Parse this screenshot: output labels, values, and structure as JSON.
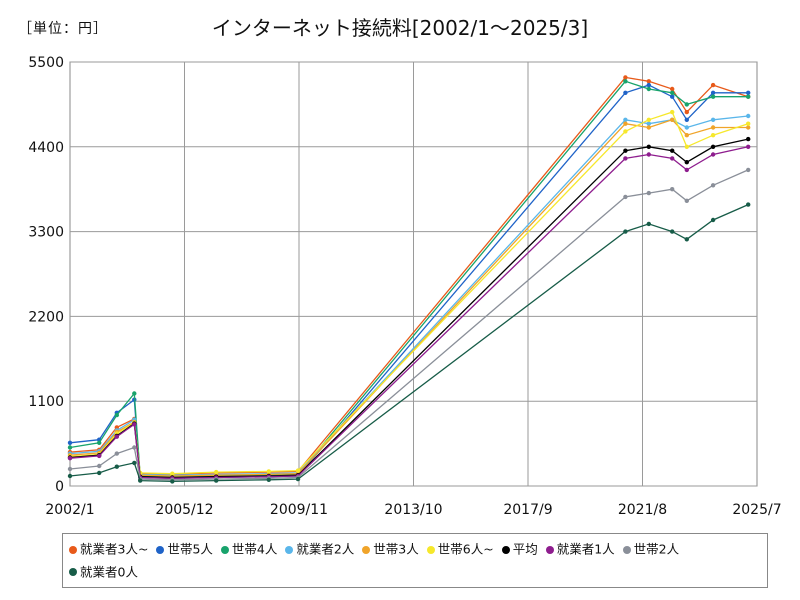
{
  "chart_data": {
    "type": "line",
    "title": "インターネット接続料[2002/1～2025/3]",
    "unit_label": "［単位：円］",
    "xlabel": "",
    "ylabel": "",
    "x_ticks": [
      "2002/1",
      "2005/12",
      "2009/11",
      "2013/10",
      "2017/9",
      "2021/8",
      "2025/7"
    ],
    "y_ticks": [
      0,
      1100,
      2200,
      3300,
      4400,
      5500
    ],
    "ylim": [
      0,
      5500
    ],
    "xlim": [
      "2002/1",
      "2025/7"
    ],
    "grid": true,
    "legend_position": "bottom",
    "series": [
      {
        "name": "就業者3人~",
        "color": "#e85a1a",
        "values": [
          [
            2002.0,
            440
          ],
          [
            2003.0,
            470
          ],
          [
            2003.6,
            760
          ],
          [
            2004.2,
            870
          ],
          [
            2004.4,
            160
          ],
          [
            2005.5,
            150
          ],
          [
            2007.0,
            170
          ],
          [
            2008.8,
            180
          ],
          [
            2009.8,
            190
          ],
          [
            2021.0,
            5300
          ],
          [
            2021.8,
            5250
          ],
          [
            2022.6,
            5150
          ],
          [
            2023.1,
            4850
          ],
          [
            2024.0,
            5200
          ],
          [
            2025.2,
            5050
          ]
        ]
      },
      {
        "name": "世帯5人",
        "color": "#1f63c8",
        "values": [
          [
            2002.0,
            560
          ],
          [
            2003.0,
            600
          ],
          [
            2003.6,
            950
          ],
          [
            2004.2,
            1120
          ],
          [
            2004.4,
            110
          ],
          [
            2005.5,
            100
          ],
          [
            2007.0,
            110
          ],
          [
            2008.8,
            120
          ],
          [
            2009.8,
            130
          ],
          [
            2021.0,
            5100
          ],
          [
            2021.8,
            5200
          ],
          [
            2022.6,
            5050
          ],
          [
            2023.1,
            4750
          ],
          [
            2024.0,
            5100
          ],
          [
            2025.2,
            5100
          ]
        ]
      },
      {
        "name": "世帯4人",
        "color": "#18a36c",
        "values": [
          [
            2002.0,
            500
          ],
          [
            2003.0,
            560
          ],
          [
            2003.6,
            920
          ],
          [
            2004.2,
            1200
          ],
          [
            2004.4,
            130
          ],
          [
            2005.5,
            120
          ],
          [
            2007.0,
            130
          ],
          [
            2008.8,
            140
          ],
          [
            2009.8,
            150
          ],
          [
            2021.0,
            5250
          ],
          [
            2021.8,
            5150
          ],
          [
            2022.6,
            5100
          ],
          [
            2023.1,
            4950
          ],
          [
            2024.0,
            5050
          ],
          [
            2025.2,
            5050
          ]
        ]
      },
      {
        "name": "就業者2人",
        "color": "#5ab6ea",
        "values": [
          [
            2002.0,
            420
          ],
          [
            2003.0,
            450
          ],
          [
            2003.6,
            720
          ],
          [
            2004.2,
            860
          ],
          [
            2004.4,
            150
          ],
          [
            2005.5,
            140
          ],
          [
            2007.0,
            150
          ],
          [
            2008.8,
            160
          ],
          [
            2009.8,
            170
          ],
          [
            2021.0,
            4750
          ],
          [
            2021.8,
            4700
          ],
          [
            2022.6,
            4750
          ],
          [
            2023.1,
            4650
          ],
          [
            2024.0,
            4750
          ],
          [
            2025.2,
            4800
          ]
        ]
      },
      {
        "name": "世帯3人",
        "color": "#f0a42a",
        "values": [
          [
            2002.0,
            400
          ],
          [
            2003.0,
            430
          ],
          [
            2003.6,
            700
          ],
          [
            2004.2,
            830
          ],
          [
            2004.4,
            140
          ],
          [
            2005.5,
            130
          ],
          [
            2007.0,
            140
          ],
          [
            2008.8,
            150
          ],
          [
            2009.8,
            160
          ],
          [
            2021.0,
            4700
          ],
          [
            2021.8,
            4650
          ],
          [
            2022.6,
            4750
          ],
          [
            2023.1,
            4550
          ],
          [
            2024.0,
            4650
          ],
          [
            2025.2,
            4650
          ]
        ]
      },
      {
        "name": "世帯6人~",
        "color": "#f6e82c",
        "values": [
          [
            2002.0,
            380
          ],
          [
            2003.0,
            410
          ],
          [
            2003.6,
            680
          ],
          [
            2004.2,
            820
          ],
          [
            2004.4,
            170
          ],
          [
            2005.5,
            160
          ],
          [
            2007.0,
            180
          ],
          [
            2008.8,
            190
          ],
          [
            2009.8,
            200
          ],
          [
            2021.0,
            4600
          ],
          [
            2021.8,
            4750
          ],
          [
            2022.6,
            4850
          ],
          [
            2023.1,
            4400
          ],
          [
            2024.0,
            4550
          ],
          [
            2025.2,
            4700
          ]
        ]
      },
      {
        "name": "平均",
        "color": "#000000",
        "values": [
          [
            2002.0,
            370
          ],
          [
            2003.0,
            400
          ],
          [
            2003.6,
            650
          ],
          [
            2004.2,
            810
          ],
          [
            2004.4,
            120
          ],
          [
            2005.5,
            110
          ],
          [
            2007.0,
            120
          ],
          [
            2008.8,
            130
          ],
          [
            2009.8,
            140
          ],
          [
            2021.0,
            4350
          ],
          [
            2021.8,
            4400
          ],
          [
            2022.6,
            4350
          ],
          [
            2023.1,
            4200
          ],
          [
            2024.0,
            4400
          ],
          [
            2025.2,
            4500
          ]
        ]
      },
      {
        "name": "就業者1人",
        "color": "#8e1d8e",
        "values": [
          [
            2002.0,
            360
          ],
          [
            2003.0,
            390
          ],
          [
            2003.6,
            640
          ],
          [
            2004.2,
            800
          ],
          [
            2004.4,
            110
          ],
          [
            2005.5,
            100
          ],
          [
            2007.0,
            110
          ],
          [
            2008.8,
            120
          ],
          [
            2009.8,
            130
          ],
          [
            2021.0,
            4250
          ],
          [
            2021.8,
            4300
          ],
          [
            2022.6,
            4250
          ],
          [
            2023.1,
            4100
          ],
          [
            2024.0,
            4300
          ],
          [
            2025.2,
            4400
          ]
        ]
      },
      {
        "name": "世帯2人",
        "color": "#8a8f99",
        "values": [
          [
            2002.0,
            220
          ],
          [
            2003.0,
            260
          ],
          [
            2003.6,
            420
          ],
          [
            2004.2,
            500
          ],
          [
            2004.4,
            90
          ],
          [
            2005.5,
            80
          ],
          [
            2007.0,
            90
          ],
          [
            2008.8,
            100
          ],
          [
            2009.8,
            110
          ],
          [
            2021.0,
            3750
          ],
          [
            2021.8,
            3800
          ],
          [
            2022.6,
            3850
          ],
          [
            2023.1,
            3700
          ],
          [
            2024.0,
            3900
          ],
          [
            2025.2,
            4100
          ]
        ]
      },
      {
        "name": "就業者0人",
        "color": "#175c48",
        "values": [
          [
            2002.0,
            130
          ],
          [
            2003.0,
            170
          ],
          [
            2003.6,
            250
          ],
          [
            2004.2,
            300
          ],
          [
            2004.4,
            70
          ],
          [
            2005.5,
            60
          ],
          [
            2007.0,
            70
          ],
          [
            2008.8,
            80
          ],
          [
            2009.8,
            90
          ],
          [
            2021.0,
            3300
          ],
          [
            2021.8,
            3400
          ],
          [
            2022.6,
            3300
          ],
          [
            2023.1,
            3200
          ],
          [
            2024.0,
            3450
          ],
          [
            2025.2,
            3650
          ]
        ]
      }
    ]
  }
}
